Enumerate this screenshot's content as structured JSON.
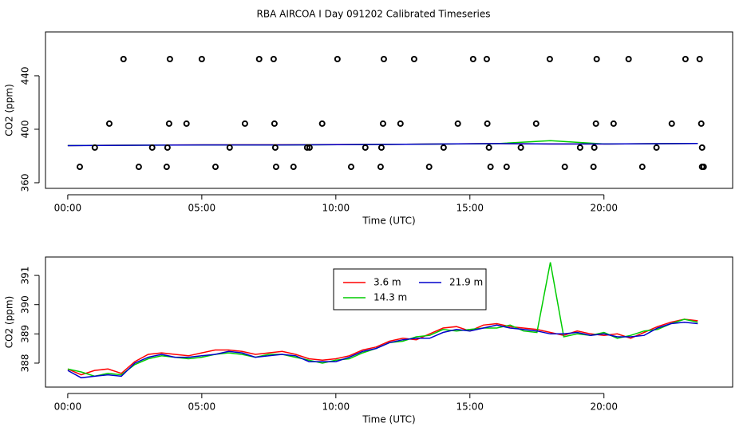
{
  "title": "RBA AIRCOA I  Day 091202  Calibrated Timeseries",
  "chart_data": [
    {
      "type": "scatter",
      "xlabel": "Time (UTC)",
      "ylabel": "CO2 (ppm)",
      "xlim": [
        -0.83,
        24.8
      ],
      "ylim": [
        355.8,
        472.8
      ],
      "xticks": [
        {
          "value": 0,
          "label": "00:00"
        },
        {
          "value": 5,
          "label": "05:00"
        },
        {
          "value": 10,
          "label": "10:00"
        },
        {
          "value": 15,
          "label": "15:00"
        },
        {
          "value": 20,
          "label": "20:00"
        }
      ],
      "yticks": [
        360,
        400,
        440
      ],
      "series": [
        {
          "type": "scatter",
          "color": "#000000",
          "x": [
            2.08,
            3.81,
            5.0,
            7.14,
            7.68,
            10.06,
            11.79,
            12.92,
            15.12,
            15.63,
            17.98,
            19.73,
            20.92,
            23.04,
            23.57,
            1.55,
            3.78,
            4.43,
            6.61,
            7.71,
            9.49,
            11.76,
            12.41,
            14.55,
            15.65,
            17.47,
            19.7,
            20.36,
            22.53,
            23.63,
            1.01,
            3.15,
            3.72,
            6.04,
            7.74,
            8.93,
            9.02,
            11.1,
            11.7,
            14.02,
            15.71,
            16.9,
            19.11,
            19.64,
            21.96,
            23.66,
            0.45,
            2.65,
            3.69,
            5.51,
            7.77,
            8.42,
            10.57,
            11.67,
            13.48,
            15.77,
            16.37,
            18.54,
            19.61,
            21.43,
            23.66,
            23.72
          ],
          "values": [
            452.5,
            452.5,
            452.5,
            452.5,
            452.5,
            452.5,
            452.5,
            452.5,
            452.5,
            452.5,
            452.5,
            452.5,
            452.5,
            452.5,
            452.5,
            404.2,
            404.2,
            404.2,
            404.2,
            404.2,
            404.2,
            404.2,
            404.2,
            404.2,
            404.2,
            404.2,
            404.2,
            404.2,
            404.2,
            404.2,
            386.3,
            386.3,
            386.3,
            386.3,
            386.3,
            386.3,
            386.3,
            386.3,
            386.3,
            386.3,
            386.3,
            386.3,
            386.3,
            386.3,
            386.3,
            386.3,
            371.9,
            371.9,
            371.9,
            371.9,
            371.9,
            371.9,
            371.9,
            371.9,
            371.9,
            371.9,
            371.9,
            371.9,
            371.9,
            371.9,
            371.9,
            371.9
          ]
        },
        {
          "type": "line",
          "color": "#ff0000",
          "x": [
            0,
            4,
            8,
            12,
            16,
            18,
            20,
            23.5
          ],
          "values": [
            387.8,
            388.3,
            388.4,
            388.7,
            389.3,
            389.0,
            389.0,
            389.4
          ]
        },
        {
          "type": "line",
          "color": "#00cc00",
          "x": [
            0,
            4,
            8,
            12,
            16,
            18,
            20,
            23.5
          ],
          "values": [
            387.8,
            388.2,
            388.3,
            388.7,
            389.2,
            391.45,
            389.0,
            389.4
          ]
        },
        {
          "type": "line",
          "color": "#0000cc",
          "x": [
            0,
            4,
            8,
            12,
            16,
            18,
            20,
            23.5
          ],
          "values": [
            387.75,
            388.2,
            388.3,
            388.7,
            389.3,
            389.0,
            389.0,
            389.35
          ]
        }
      ]
    },
    {
      "type": "line",
      "xlabel": "Time (UTC)",
      "ylabel": "CO2 (ppm)",
      "xlim": [
        -0.83,
        24.8
      ],
      "ylim": [
        387.18,
        391.63
      ],
      "xticks": [
        {
          "value": 0,
          "label": "00:00"
        },
        {
          "value": 5,
          "label": "05:00"
        },
        {
          "value": 10,
          "label": "10:00"
        },
        {
          "value": 15,
          "label": "15:00"
        },
        {
          "value": 20,
          "label": "20:00"
        }
      ],
      "yticks": [
        388,
        389,
        390,
        391
      ],
      "legend": "top",
      "x": [
        0,
        0.5,
        1,
        1.5,
        2,
        2.5,
        3,
        3.5,
        4,
        4.5,
        5,
        5.5,
        6,
        6.5,
        7,
        7.5,
        8,
        8.5,
        9,
        9.5,
        10,
        10.5,
        11,
        11.5,
        12,
        12.5,
        13,
        13.5,
        14,
        14.5,
        15,
        15.5,
        16,
        16.5,
        17,
        17.5,
        18,
        18.5,
        19,
        19.5,
        20,
        20.5,
        21,
        21.5,
        22,
        22.5,
        23,
        23.5
      ],
      "series": [
        {
          "name": "3.6 m",
          "color": "#ff0000",
          "values": [
            387.8,
            387.6,
            387.75,
            387.8,
            387.65,
            388.05,
            388.3,
            388.35,
            388.3,
            388.25,
            388.35,
            388.45,
            388.45,
            388.4,
            388.3,
            388.35,
            388.4,
            388.3,
            388.15,
            388.1,
            388.15,
            388.25,
            388.45,
            388.55,
            388.75,
            388.85,
            388.8,
            389.0,
            389.2,
            389.25,
            389.1,
            389.3,
            389.35,
            389.25,
            389.2,
            389.15,
            389.05,
            388.95,
            389.1,
            389.0,
            388.95,
            389.0,
            388.85,
            389.05,
            389.25,
            389.4,
            389.5,
            389.45
          ]
        },
        {
          "name": "14.3 m",
          "color": "#00cc00",
          "values": [
            387.8,
            387.7,
            387.55,
            387.65,
            387.6,
            387.95,
            388.15,
            388.25,
            388.2,
            388.15,
            388.2,
            388.3,
            388.35,
            388.3,
            388.2,
            388.3,
            388.3,
            388.2,
            388.1,
            388.0,
            388.1,
            388.15,
            388.35,
            388.5,
            388.7,
            388.75,
            388.9,
            388.95,
            389.15,
            389.1,
            389.15,
            389.2,
            389.2,
            389.3,
            389.1,
            389.05,
            391.45,
            388.9,
            389.0,
            388.95,
            389.05,
            388.85,
            388.95,
            389.1,
            389.15,
            389.35,
            389.5,
            389.4
          ]
        },
        {
          "name": "21.9 m",
          "color": "#0000cc",
          "values": [
            387.75,
            387.5,
            387.55,
            387.6,
            387.55,
            388.0,
            388.2,
            388.3,
            388.2,
            388.2,
            388.25,
            388.3,
            388.4,
            388.35,
            388.2,
            388.25,
            388.3,
            388.25,
            388.05,
            388.05,
            388.05,
            388.2,
            388.4,
            388.5,
            388.7,
            388.8,
            388.85,
            388.85,
            389.05,
            389.15,
            389.1,
            389.2,
            389.3,
            389.2,
            389.15,
            389.1,
            389.0,
            389.0,
            389.05,
            388.95,
            389.0,
            388.9,
            388.9,
            388.95,
            389.2,
            389.35,
            389.4,
            389.35
          ]
        }
      ]
    }
  ]
}
